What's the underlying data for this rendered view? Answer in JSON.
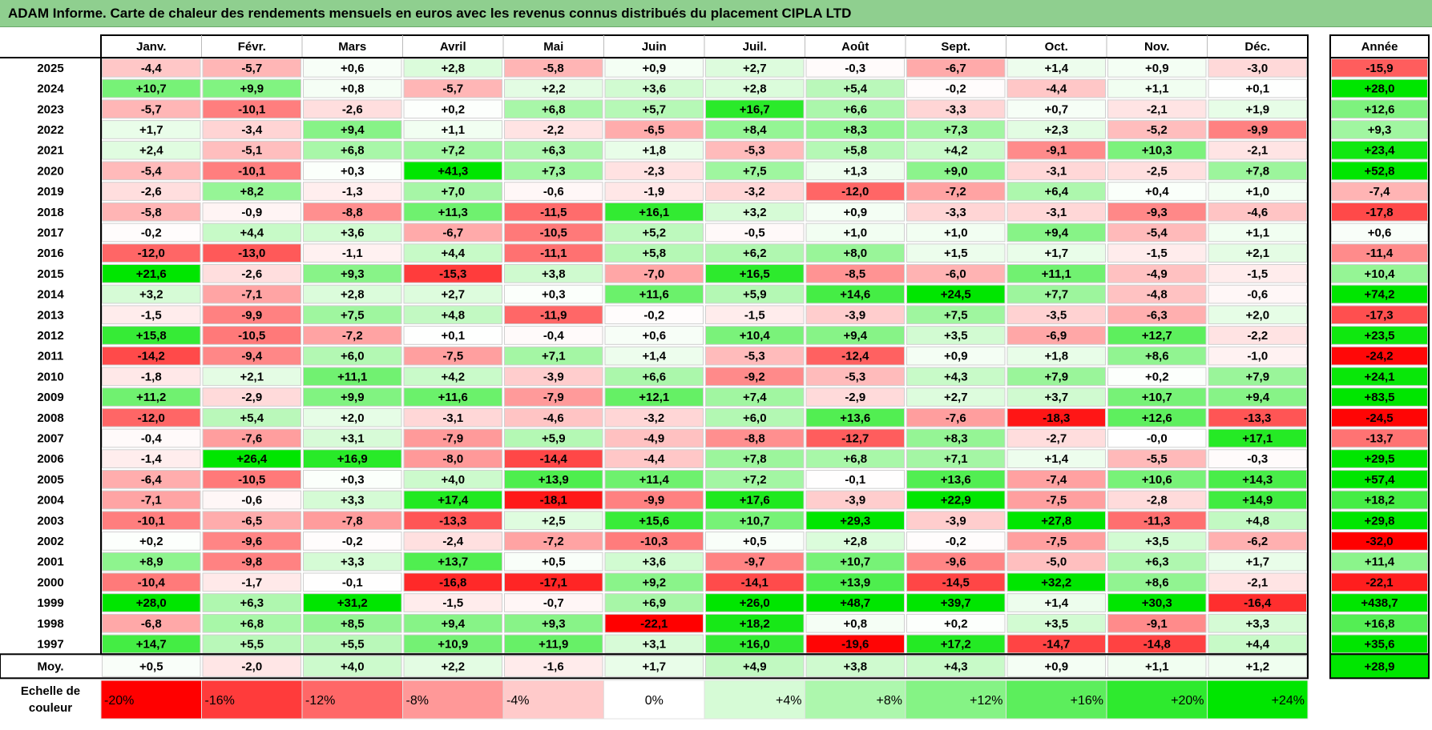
{
  "title": "ADAM Informe. Carte de chaleur des rendements mensuels en euros avec les revenus connus distribués du placement CIPLA LTD",
  "chart_data": {
    "type": "heatmap",
    "columns": [
      "Janv.",
      "Févr.",
      "Mars",
      "Avril",
      "Mai",
      "Juin",
      "Juil.",
      "Août",
      "Sept.",
      "Oct.",
      "Nov.",
      "Déc."
    ],
    "annual_header": "Année",
    "rows": [
      {
        "year": "2025",
        "values": [
          -4.4,
          -5.7,
          0.6,
          2.8,
          -5.8,
          0.9,
          2.7,
          -0.3,
          -6.7,
          1.4,
          0.9,
          -3.0
        ],
        "annual": -15.9
      },
      {
        "year": "2024",
        "values": [
          10.7,
          9.9,
          0.8,
          -5.7,
          2.2,
          3.6,
          2.8,
          5.4,
          -0.2,
          -4.4,
          1.1,
          0.1
        ],
        "annual": 28.0
      },
      {
        "year": "2023",
        "values": [
          -5.7,
          -10.1,
          -2.6,
          0.2,
          6.8,
          5.7,
          16.7,
          6.6,
          -3.3,
          0.7,
          -2.1,
          1.9
        ],
        "annual": 12.6
      },
      {
        "year": "2022",
        "values": [
          1.7,
          -3.4,
          9.4,
          1.1,
          -2.2,
          -6.5,
          8.4,
          8.3,
          7.3,
          2.3,
          -5.2,
          -9.9
        ],
        "annual": 9.3
      },
      {
        "year": "2021",
        "values": [
          2.4,
          -5.1,
          6.8,
          7.2,
          6.3,
          1.8,
          -5.3,
          5.8,
          4.2,
          -9.1,
          10.3,
          -2.1
        ],
        "annual": 23.4
      },
      {
        "year": "2020",
        "values": [
          -5.4,
          -10.1,
          0.3,
          41.3,
          7.3,
          -2.3,
          7.5,
          1.3,
          9.0,
          -3.1,
          -2.5,
          7.8
        ],
        "annual": 52.8
      },
      {
        "year": "2019",
        "values": [
          -2.6,
          8.2,
          -1.3,
          7.0,
          -0.6,
          -1.9,
          -3.2,
          -12.0,
          -7.2,
          6.4,
          0.4,
          1.0
        ],
        "annual": -7.4
      },
      {
        "year": "2018",
        "values": [
          -5.8,
          -0.9,
          -8.8,
          11.3,
          -11.5,
          16.1,
          3.2,
          0.9,
          -3.3,
          -3.1,
          -9.3,
          -4.6
        ],
        "annual": -17.8
      },
      {
        "year": "2017",
        "values": [
          -0.2,
          4.4,
          3.6,
          -6.7,
          -10.5,
          5.2,
          -0.5,
          1.0,
          1.0,
          9.4,
          -5.4,
          1.1
        ],
        "annual": 0.6
      },
      {
        "year": "2016",
        "values": [
          -12.0,
          -13.0,
          -1.1,
          4.4,
          -11.1,
          5.8,
          6.2,
          8.0,
          1.5,
          1.7,
          -1.5,
          2.1
        ],
        "annual": -11.4
      },
      {
        "year": "2015",
        "values": [
          21.6,
          -2.6,
          9.3,
          -15.3,
          3.8,
          -7.0,
          16.5,
          -8.5,
          -6.0,
          11.1,
          -4.9,
          -1.5
        ],
        "annual": 10.4
      },
      {
        "year": "2014",
        "values": [
          3.2,
          -7.1,
          2.8,
          2.7,
          0.3,
          11.6,
          5.9,
          14.6,
          24.5,
          7.7,
          -4.8,
          -0.6
        ],
        "annual": 74.2
      },
      {
        "year": "2013",
        "values": [
          -1.5,
          -9.9,
          7.5,
          4.8,
          -11.9,
          -0.2,
          -1.5,
          -3.9,
          7.5,
          -3.5,
          -6.3,
          2.0
        ],
        "annual": -17.3
      },
      {
        "year": "2012",
        "values": [
          15.8,
          -10.5,
          -7.2,
          0.1,
          -0.4,
          0.6,
          10.4,
          9.4,
          3.5,
          -6.9,
          12.7,
          -2.2
        ],
        "annual": 23.5
      },
      {
        "year": "2011",
        "values": [
          -14.2,
          -9.4,
          6.0,
          -7.5,
          7.1,
          1.4,
          -5.3,
          -12.4,
          0.9,
          1.8,
          8.6,
          -1.0
        ],
        "annual": -24.2
      },
      {
        "year": "2010",
        "values": [
          -1.8,
          2.1,
          11.1,
          4.2,
          -3.9,
          6.6,
          -9.2,
          -5.3,
          4.3,
          7.9,
          0.2,
          7.9
        ],
        "annual": 24.1
      },
      {
        "year": "2009",
        "values": [
          11.2,
          -2.9,
          9.9,
          11.6,
          -7.9,
          12.1,
          7.4,
          -2.9,
          2.7,
          3.7,
          10.7,
          9.4
        ],
        "annual": 83.5
      },
      {
        "year": "2008",
        "values": [
          -12.0,
          5.4,
          2.0,
          -3.1,
          -4.6,
          -3.2,
          6.0,
          13.6,
          -7.6,
          -18.3,
          12.6,
          -13.3
        ],
        "annual": -24.5
      },
      {
        "year": "2007",
        "values": [
          -0.4,
          -7.6,
          3.1,
          -7.9,
          5.9,
          -4.9,
          -8.8,
          -12.7,
          8.3,
          -2.7,
          -0.0,
          17.1
        ],
        "annual": -13.7
      },
      {
        "year": "2006",
        "values": [
          -1.4,
          26.4,
          16.9,
          -8.0,
          -14.4,
          -4.4,
          7.8,
          6.8,
          7.1,
          1.4,
          -5.5,
          -0.3
        ],
        "annual": 29.5
      },
      {
        "year": "2005",
        "values": [
          -6.4,
          -10.5,
          0.3,
          4.0,
          13.9,
          11.4,
          7.2,
          -0.1,
          13.6,
          -7.4,
          10.6,
          14.3
        ],
        "annual": 57.4
      },
      {
        "year": "2004",
        "values": [
          -7.1,
          -0.6,
          3.3,
          17.4,
          -18.1,
          -9.9,
          17.6,
          -3.9,
          22.9,
          -7.5,
          -2.8,
          14.9
        ],
        "annual": 18.2
      },
      {
        "year": "2003",
        "values": [
          -10.1,
          -6.5,
          -7.8,
          -13.3,
          2.5,
          15.6,
          10.7,
          29.3,
          -3.9,
          27.8,
          -11.3,
          4.8
        ],
        "annual": 29.8
      },
      {
        "year": "2002",
        "values": [
          0.2,
          -9.6,
          -0.2,
          -2.4,
          -7.2,
          -10.3,
          0.5,
          2.8,
          -0.2,
          -7.5,
          3.5,
          -6.2
        ],
        "annual": -32.0
      },
      {
        "year": "2001",
        "values": [
          8.9,
          -9.8,
          3.3,
          13.7,
          0.5,
          3.6,
          -9.7,
          10.7,
          -9.6,
          -5.0,
          6.3,
          1.7
        ],
        "annual": 11.4
      },
      {
        "year": "2000",
        "values": [
          -10.4,
          -1.7,
          -0.1,
          -16.8,
          -17.1,
          9.2,
          -14.1,
          13.9,
          -14.5,
          32.2,
          8.6,
          -2.1
        ],
        "annual": -22.1
      },
      {
        "year": "1999",
        "values": [
          28.0,
          6.3,
          31.2,
          -1.5,
          -0.7,
          6.9,
          26.0,
          48.7,
          39.7,
          1.4,
          30.3,
          -16.4
        ],
        "annual": 438.7
      },
      {
        "year": "1998",
        "values": [
          -6.8,
          6.8,
          8.5,
          9.4,
          9.3,
          -22.1,
          18.2,
          0.8,
          0.2,
          3.5,
          -9.1,
          3.3
        ],
        "annual": 16.8
      },
      {
        "year": "1997",
        "values": [
          14.7,
          5.5,
          5.5,
          10.9,
          11.9,
          3.1,
          16.0,
          -19.6,
          17.2,
          -14.7,
          -14.8,
          4.4
        ],
        "annual": 35.6
      }
    ],
    "average": {
      "label": "Moy.",
      "values": [
        0.5,
        -2.0,
        4.0,
        2.2,
        -1.6,
        1.7,
        4.9,
        3.8,
        4.3,
        0.9,
        1.1,
        1.2
      ],
      "annual": 28.9
    },
    "scale": {
      "label_line1": "Echelle de",
      "label_line2": "couleur",
      "stops": [
        {
          "label": "-20%",
          "color": "#ff0000"
        },
        {
          "label": "-16%",
          "color": "#ff3b3b"
        },
        {
          "label": "-12%",
          "color": "#ff6767"
        },
        {
          "label": "-8%",
          "color": "#ff9898"
        },
        {
          "label": "-4%",
          "color": "#ffcaca"
        },
        {
          "label": "0%",
          "color": "#ffffff"
        },
        {
          "label": "+4%",
          "color": "#d6fbd6"
        },
        {
          "label": "+8%",
          "color": "#adf7ad"
        },
        {
          "label": "+12%",
          "color": "#85f385"
        },
        {
          "label": "+16%",
          "color": "#5cee5c"
        },
        {
          "label": "+20%",
          "color": "#2eea2e"
        },
        {
          "label": "+24%",
          "color": "#00e600"
        }
      ]
    },
    "colors": {
      "negative_max": "#ff0000",
      "zero": "#ffffff",
      "positive_max": "#00e600",
      "title_bg": "#8fcf8f"
    }
  }
}
